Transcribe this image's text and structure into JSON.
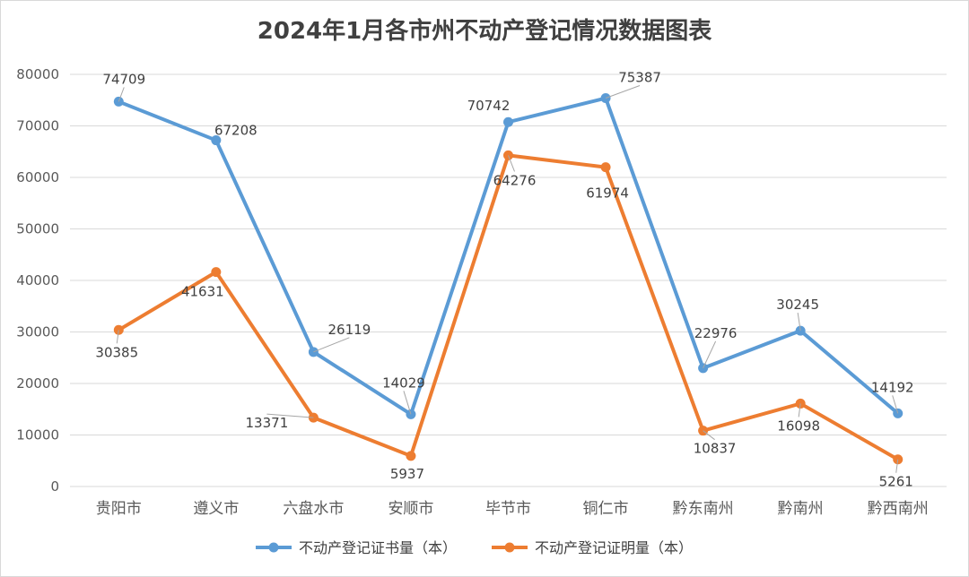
{
  "chart_data": {
    "type": "line",
    "title": "2024年1月各市州不动产登记情况数据图表",
    "categories": [
      "贵阳市",
      "遵义市",
      "六盘水市",
      "安顺市",
      "毕节市",
      "铜仁市",
      "黔东南州",
      "黔南州",
      "黔西南州"
    ],
    "series": [
      {
        "name": "不动产登记证书量（本）",
        "color": "#5b9bd5",
        "values": [
          74709,
          67208,
          26119,
          14029,
          70742,
          75387,
          22976,
          30245,
          14192
        ]
      },
      {
        "name": "不动产登记证明量（本）",
        "color": "#ed7d31",
        "values": [
          30385,
          41631,
          13371,
          5937,
          64276,
          61974,
          10837,
          16098,
          5261
        ]
      }
    ],
    "ylim": [
      0,
      80000
    ],
    "yticks": [
      0,
      10000,
      20000,
      30000,
      40000,
      50000,
      60000,
      70000,
      80000
    ],
    "grid": true,
    "legend_position": "bottom"
  }
}
